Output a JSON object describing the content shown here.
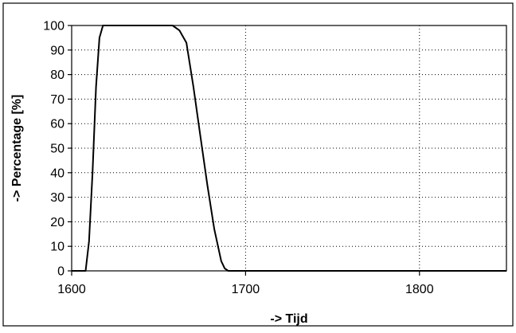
{
  "chart_data": {
    "type": "line",
    "xlabel": "-> Tijd",
    "ylabel": "-> Percentage [%]",
    "xlim": [
      1600,
      1850
    ],
    "ylim": [
      0,
      100
    ],
    "x_ticks": [
      1600,
      1700,
      1800
    ],
    "y_ticks": [
      0,
      10,
      20,
      30,
      40,
      50,
      60,
      70,
      80,
      90,
      100
    ],
    "grid": true,
    "series": [
      {
        "color": "#000000",
        "x": [
          1600,
          1608,
          1610,
          1612,
          1614,
          1616,
          1618,
          1620,
          1640,
          1658,
          1662,
          1666,
          1670,
          1674,
          1678,
          1682,
          1686,
          1688,
          1690,
          1760,
          1850
        ],
        "y": [
          0,
          0,
          12,
          40,
          75,
          95,
          100,
          100,
          100,
          100,
          98,
          93,
          75,
          55,
          35,
          17,
          4,
          1,
          0,
          0,
          0
        ]
      }
    ]
  }
}
